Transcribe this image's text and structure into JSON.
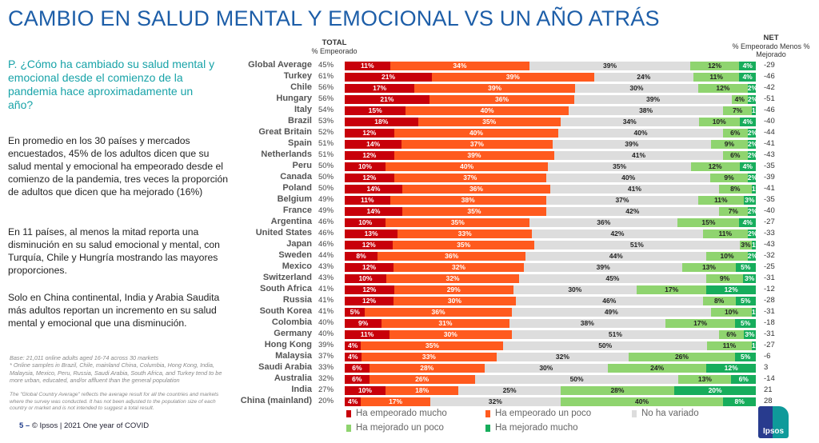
{
  "title": "CAMBIO EN SALUD MENTAL Y EMOCIONAL VS UN AÑO ATRÁS",
  "question": "P. ¿Cómo ha cambiado su salud mental y emocional desde el comienzo de la pandemia hace aproximadamente un año?",
  "paragraphs": [
    "En promedio en los 30 países y mercados encuestados, 45% de los adultos dicen que su salud mental y emocional ha empeorado desde el comienzo de la pandemia, tres veces la proporción de adultos que dicen que ha mejorado (16%)",
    "En 11 países, al menos la mitad reporta una disminución en su salud emocional y mental, con Turquía, Chile y Hungría mostrando las mayores proporciones.",
    "Solo en China continental, India y Arabia Saudita más adultos reportan un incremento en su salud mental y emocional que una disminución."
  ],
  "footnotes": {
    "base": "Base: 21,011 online adults aged 16-74 across 30 markets",
    "online": "* Online samples in Brazil, Chile, mainland China, Columbia, Hong Kong, India, Malaysia, Mexico, Peru, Russia, Saudi Arabia, South Africa, and Turkey tend to be more urban, educated, and/or affluent than the general population",
    "global": "The \"Global Country Average\" reflects the average result for all the countries and markets where the survey was conducted. It has not been adjusted to the population size of each country or market and is not intended to suggest a total result."
  },
  "footer": {
    "page": "5 –",
    "text": "© Ipsos | 2021 One year of COVID"
  },
  "logo": "Ipsos",
  "chart_data": {
    "type": "bar",
    "orientation": "horizontal-stacked-100",
    "total_header": "TOTAL",
    "total_subheader": "% Empeorado",
    "net_header": "NET",
    "net_subheader": "% Empeorado Menos % Mejorado",
    "series": [
      {
        "name": "Ha empeorado mucho",
        "color": "#c8000a"
      },
      {
        "name": "Ha empeorado un poco",
        "color": "#ff5a1e"
      },
      {
        "name": "No ha variado",
        "color": "#dddddd"
      },
      {
        "name": "Ha mejorado un poco",
        "color": "#8fd46f"
      },
      {
        "name": "Ha mejorado mucho",
        "color": "#17ad5c"
      }
    ],
    "rows": [
      {
        "country": "Global Average",
        "total": "45%",
        "net": "-29",
        "values": [
          11,
          34,
          39,
          12,
          4
        ]
      },
      {
        "country": "Turkey",
        "total": "61%",
        "net": "-46",
        "values": [
          21,
          39,
          24,
          11,
          4
        ]
      },
      {
        "country": "Chile",
        "total": "56%",
        "net": "-42",
        "values": [
          17,
          39,
          30,
          12,
          2
        ]
      },
      {
        "country": "Hungary",
        "total": "56%",
        "net": "-51",
        "values": [
          21,
          36,
          39,
          4,
          2
        ]
      },
      {
        "country": "Italy",
        "total": "54%",
        "net": "-46",
        "values": [
          15,
          40,
          38,
          7,
          1
        ]
      },
      {
        "country": "Brazil",
        "total": "53%",
        "net": "-40",
        "values": [
          18,
          35,
          34,
          10,
          4
        ]
      },
      {
        "country": "Great Britain",
        "total": "52%",
        "net": "-44",
        "values": [
          12,
          40,
          40,
          6,
          2
        ]
      },
      {
        "country": "Spain",
        "total": "51%",
        "net": "-41",
        "values": [
          14,
          37,
          39,
          9,
          2
        ]
      },
      {
        "country": "Netherlands",
        "total": "51%",
        "net": "-43",
        "values": [
          12,
          39,
          41,
          6,
          2
        ]
      },
      {
        "country": "Peru",
        "total": "50%",
        "net": "-35",
        "values": [
          10,
          40,
          35,
          12,
          4
        ]
      },
      {
        "country": "Canada",
        "total": "50%",
        "net": "-39",
        "values": [
          12,
          37,
          40,
          9,
          2
        ]
      },
      {
        "country": "Poland",
        "total": "50%",
        "net": "-41",
        "values": [
          14,
          36,
          41,
          8,
          1
        ]
      },
      {
        "country": "Belgium",
        "total": "49%",
        "net": "-35",
        "values": [
          11,
          38,
          37,
          11,
          3
        ]
      },
      {
        "country": "France",
        "total": "49%",
        "net": "-40",
        "values": [
          14,
          35,
          42,
          7,
          2
        ]
      },
      {
        "country": "Argentina",
        "total": "46%",
        "net": "-27",
        "values": [
          10,
          35,
          36,
          15,
          4
        ]
      },
      {
        "country": "United States",
        "total": "46%",
        "net": "-33",
        "values": [
          13,
          33,
          42,
          11,
          2
        ]
      },
      {
        "country": "Japan",
        "total": "46%",
        "net": "-43",
        "values": [
          12,
          35,
          51,
          3,
          1
        ]
      },
      {
        "country": "Sweden",
        "total": "44%",
        "net": "-32",
        "values": [
          8,
          36,
          44,
          10,
          2
        ]
      },
      {
        "country": "Mexico",
        "total": "43%",
        "net": "-25",
        "values": [
          12,
          32,
          39,
          13,
          5
        ]
      },
      {
        "country": "Switzerland",
        "total": "43%",
        "net": "-31",
        "values": [
          10,
          32,
          45,
          9,
          3
        ]
      },
      {
        "country": "South Africa",
        "total": "41%",
        "net": "-12",
        "values": [
          12,
          29,
          30,
          17,
          12
        ]
      },
      {
        "country": "Russia",
        "total": "41%",
        "net": "-28",
        "values": [
          12,
          30,
          46,
          8,
          5
        ]
      },
      {
        "country": "South Korea",
        "total": "41%",
        "net": "-31",
        "values": [
          5,
          36,
          49,
          10,
          1
        ]
      },
      {
        "country": "Colombia",
        "total": "40%",
        "net": "-18",
        "values": [
          9,
          31,
          38,
          17,
          5
        ]
      },
      {
        "country": "Germany",
        "total": "40%",
        "net": "-31",
        "values": [
          11,
          30,
          51,
          6,
          3
        ]
      },
      {
        "country": "Hong Kong",
        "total": "39%",
        "net": "-27",
        "values": [
          4,
          35,
          50,
          11,
          1
        ]
      },
      {
        "country": "Malaysia",
        "total": "37%",
        "net": "-6",
        "values": [
          4,
          33,
          32,
          26,
          5
        ]
      },
      {
        "country": "Saudi Arabia",
        "total": "33%",
        "net": "3",
        "values": [
          6,
          28,
          30,
          24,
          12
        ]
      },
      {
        "country": "Australia",
        "total": "32%",
        "net": "-14",
        "values": [
          6,
          26,
          50,
          13,
          6
        ]
      },
      {
        "country": "India",
        "total": "27%",
        "net": "21",
        "values": [
          10,
          18,
          25,
          28,
          20
        ]
      },
      {
        "country": "China (mainland)",
        "total": "20%",
        "net": "28",
        "values": [
          4,
          17,
          32,
          40,
          8
        ]
      }
    ]
  }
}
